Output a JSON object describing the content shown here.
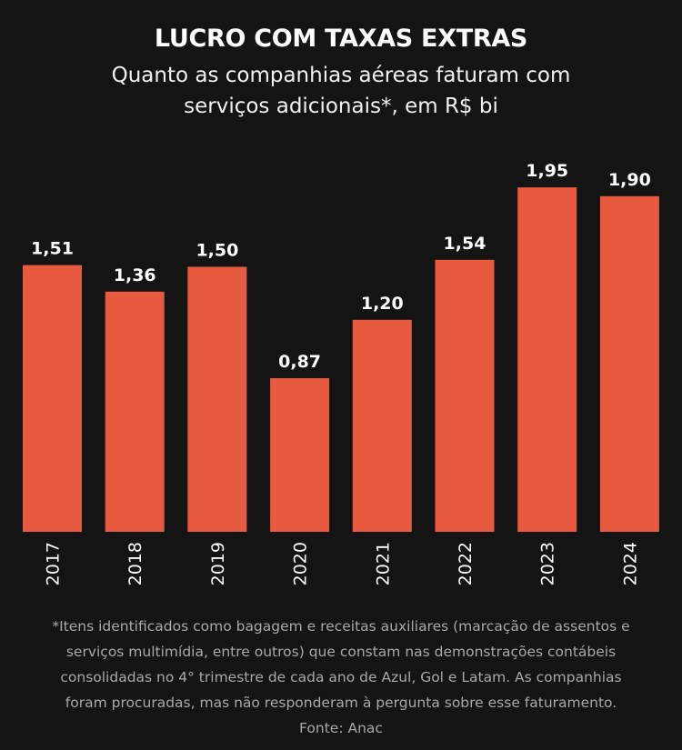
{
  "header": {
    "title": "LUCRO COM TAXAS EXTRAS",
    "subtitle_lines": [
      "Quanto as companhias aéreas faturam com",
      "serviços adicionais*, em R$ bi"
    ]
  },
  "footnote": {
    "lines": [
      "*Itens identificados como bagagem e receitas auxiliares (marcação de assentos e",
      "serviços multimídia, entre outros) que constam nas demonstrações contábeis",
      "consolidadas no 4° trimestre de cada ano de Azul, Gol e Latam. As companhias",
      "foram procuradas, mas não responderam à pergunta sobre esse faturamento."
    ],
    "source": "Fonte: Anac"
  },
  "colors": {
    "background": "#141414",
    "bar": "#E85A40",
    "text": "#FFFFFF",
    "footnote": "#A8A8A8"
  },
  "chart_data": {
    "type": "bar",
    "title": "LUCRO COM TAXAS EXTRAS",
    "subtitle": "Quanto as companhias aéreas faturam com serviços adicionais*, em R$ bi",
    "xlabel": "",
    "ylabel": "R$ bi",
    "categories": [
      "2017",
      "2018",
      "2019",
      "2020",
      "2021",
      "2022",
      "2023",
      "2024"
    ],
    "values": [
      1.51,
      1.36,
      1.5,
      0.87,
      1.2,
      1.54,
      1.95,
      1.9
    ],
    "value_labels": [
      "1,51",
      "1,36",
      "1,50",
      "0,87",
      "1,20",
      "1,54",
      "1,95",
      "1,90"
    ],
    "ylim": [
      0,
      2.0
    ],
    "grid": false,
    "legend": "none",
    "x_tick_rotation": "vertical",
    "source": "Anac"
  }
}
